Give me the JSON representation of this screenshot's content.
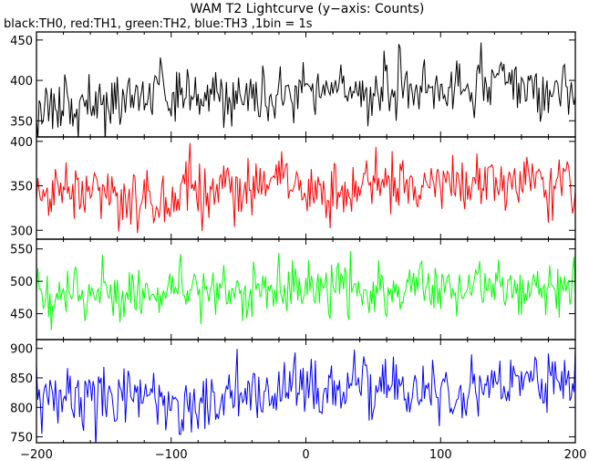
{
  "chart_data": {
    "type": "line",
    "title": "WAM T2 Lightcurve (y−axis: Counts)",
    "subtitle": "black:TH0, red:TH1, green:TH2, blue:TH3 ,1bin = 1s",
    "xlim": [
      -200,
      200
    ],
    "x_ticks": [
      -200,
      -100,
      0,
      100,
      200
    ],
    "x_tick_labels": [
      "−200",
      "−100",
      "0",
      "100",
      "200"
    ],
    "x_step": 1,
    "grid": false,
    "legend": "none (colors described in subtitle)",
    "panels": [
      {
        "name": "TH0",
        "color": "#000000",
        "ylim": [
          330,
          460
        ],
        "y_ticks": [
          350,
          400,
          450
        ],
        "base_start": 368,
        "base_end": 396,
        "noise_sd": 17,
        "seed": 11
      },
      {
        "name": "TH1",
        "color": "#ff0000",
        "ylim": [
          290,
          405
        ],
        "y_ticks": [
          300,
          350,
          400
        ],
        "base_start": 336,
        "base_end": 352,
        "noise_sd": 17,
        "seed": 23
      },
      {
        "name": "TH2",
        "color": "#00ff00",
        "ylim": [
          410,
          565
        ],
        "y_ticks": [
          450,
          500,
          550
        ],
        "base_start": 485,
        "base_end": 493,
        "noise_sd": 20,
        "seed": 37
      },
      {
        "name": "TH3",
        "color": "#0000ff",
        "ylim": [
          740,
          915
        ],
        "y_ticks": [
          750,
          800,
          850,
          900
        ],
        "base_start": 808,
        "base_end": 838,
        "noise_sd": 26,
        "seed": 53
      }
    ]
  }
}
